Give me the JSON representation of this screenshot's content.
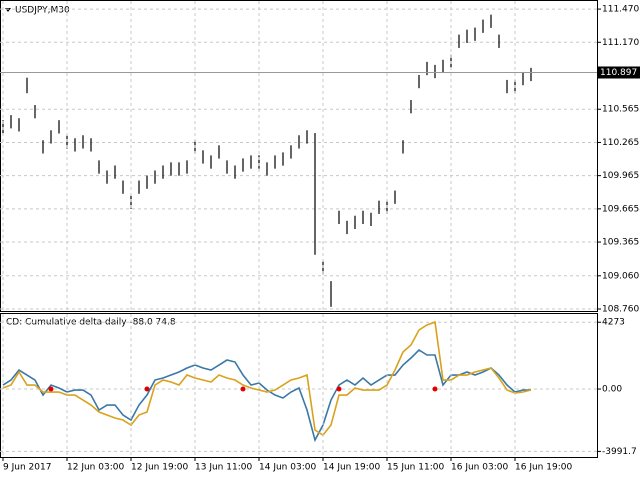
{
  "chart_data": [
    {
      "type": "hilo",
      "title": "USDJPY,M30",
      "color": "#000000",
      "high": [
        110.466,
        110.512,
        110.484,
        110.85,
        110.603,
        110.285,
        110.375,
        110.466,
        110.33,
        110.303,
        110.33,
        110.303,
        110.103,
        110.012,
        110.057,
        109.921,
        109.785,
        109.921,
        109.966,
        110.012,
        110.057,
        110.085,
        110.085,
        110.103,
        110.285,
        110.194,
        110.148,
        110.239,
        110.103,
        110.057,
        110.121,
        110.148,
        110.148,
        110.085,
        110.148,
        110.175,
        110.239,
        110.33,
        110.375,
        110.35,
        109.194,
        109.012,
        109.648,
        109.557,
        109.603,
        109.648,
        109.63,
        109.739,
        109.739,
        109.83,
        110.285,
        110.648,
        110.875,
        110.993,
        110.966,
        111.012,
        111.057,
        111.239,
        111.284,
        111.303,
        111.375,
        111.42,
        111.239,
        110.83,
        110.83,
        110.902,
        110.939
      ],
      "low": [
        110.346,
        110.392,
        110.364,
        110.71,
        110.483,
        110.165,
        110.255,
        110.346,
        110.21,
        110.183,
        110.21,
        110.183,
        109.983,
        109.892,
        109.937,
        109.801,
        109.665,
        109.801,
        109.846,
        109.892,
        109.937,
        109.965,
        109.965,
        109.983,
        110.165,
        110.074,
        110.028,
        110.119,
        109.983,
        109.937,
        110.001,
        110.028,
        110.028,
        109.965,
        110.028,
        110.055,
        110.119,
        110.21,
        110.255,
        109.25,
        109.074,
        108.78,
        109.528,
        109.437,
        109.483,
        109.528,
        109.51,
        109.619,
        109.619,
        109.71,
        110.165,
        110.528,
        110.755,
        110.873,
        110.846,
        110.892,
        110.937,
        111.119,
        111.164,
        111.183,
        111.255,
        111.3,
        111.119,
        110.71,
        110.71,
        110.782,
        110.819
      ],
      "ylim": [
        108.742,
        111.543
      ],
      "yticks": [
        {
          "value": 111.47,
          "label": "111.470"
        },
        {
          "value": 111.17,
          "label": "111.170"
        },
        {
          "value": 110.565,
          "label": "110.565"
        },
        {
          "value": 110.265,
          "label": "110.265"
        },
        {
          "value": 109.965,
          "label": "109.965"
        },
        {
          "value": 109.665,
          "label": "109.665"
        },
        {
          "value": 109.365,
          "label": "109.365"
        },
        {
          "value": 109.06,
          "label": "109.060"
        },
        {
          "value": 108.76,
          "label": "108.760"
        }
      ],
      "last_price": 110.897,
      "grid": true
    },
    {
      "type": "line",
      "title": "CD: Cumulative delta daily  -88.0 74.8",
      "categories": [
        "9 Jun 2017",
        null,
        null,
        null,
        null,
        null,
        null,
        null,
        "12 Jun 03:00",
        null,
        null,
        null,
        null,
        null,
        null,
        null,
        "12 Jun 19:00",
        null,
        null,
        null,
        null,
        null,
        null,
        null,
        "13 Jun 11:00",
        null,
        null,
        null,
        null,
        null,
        null,
        null,
        "14 Jun 03:00",
        null,
        null,
        null,
        null,
        null,
        null,
        null,
        "14 Jun 19:00",
        null,
        null,
        null,
        null,
        null,
        null,
        null,
        "15 Jun 11:00",
        null,
        null,
        null,
        null,
        null,
        null,
        null,
        "16 Jun 03:00",
        null,
        null,
        null,
        null,
        null,
        null,
        null,
        "16 Jun 19:00",
        null,
        null
      ],
      "series": [
        {
          "color": "#3a78a8",
          "values": [
            256,
            576,
            1216,
            896,
            576,
            -384,
            256,
            64,
            -192,
            -64,
            -64,
            -384,
            -1344,
            -1024,
            -1024,
            -1664,
            -1984,
            -1024,
            -384,
            576,
            704,
            896,
            1088,
            1344,
            1536,
            1344,
            1216,
            1536,
            1856,
            1728,
            896,
            256,
            384,
            -64,
            -384,
            -576,
            -192,
            64,
            -1344,
            -3264,
            -2304,
            -704,
            256,
            576,
            256,
            704,
            256,
            576,
            896,
            896,
            1536,
            1984,
            2496,
            2176,
            2176,
            256,
            896,
            896,
            1088,
            896,
            1088,
            1344,
            896,
            256,
            -192,
            -64,
            -64
          ]
        },
        {
          "color": "#d9a21b",
          "values": [
            64,
            256,
            1088,
            256,
            256,
            -192,
            -192,
            -192,
            -384,
            -384,
            -704,
            -1024,
            -1472,
            -1664,
            -1856,
            -1984,
            -2304,
            -1664,
            -1472,
            256,
            576,
            448,
            256,
            896,
            704,
            576,
            448,
            896,
            704,
            576,
            256,
            64,
            -64,
            -192,
            -64,
            256,
            576,
            704,
            896,
            -2624,
            -2944,
            -2304,
            -384,
            -384,
            64,
            -64,
            -64,
            -64,
            256,
            1216,
            2368,
            2816,
            3776,
            4096,
            4288,
            576,
            576,
            896,
            896,
            1088,
            1216,
            1344,
            704,
            -64,
            -256,
            -192,
            -64
          ]
        },
        {
          "color": "#e00000",
          "points": true,
          "values": [
            null,
            null,
            null,
            null,
            null,
            null,
            0,
            null,
            null,
            null,
            null,
            null,
            null,
            null,
            null,
            null,
            null,
            null,
            0,
            null,
            null,
            null,
            null,
            null,
            null,
            null,
            null,
            null,
            null,
            null,
            0,
            null,
            null,
            null,
            null,
            null,
            null,
            null,
            null,
            null,
            null,
            null,
            0,
            null,
            null,
            null,
            null,
            null,
            null,
            null,
            null,
            null,
            null,
            null,
            0,
            null,
            null,
            null,
            null,
            null,
            null,
            null,
            null,
            null,
            null,
            null,
            null
          ]
        }
      ],
      "ylim": [
        -4350,
        4800
      ],
      "yticks": [
        4273,
        {
          "value": 0,
          "label": "0.00"
        },
        -3991.7
      ],
      "grid": true
    }
  ]
}
